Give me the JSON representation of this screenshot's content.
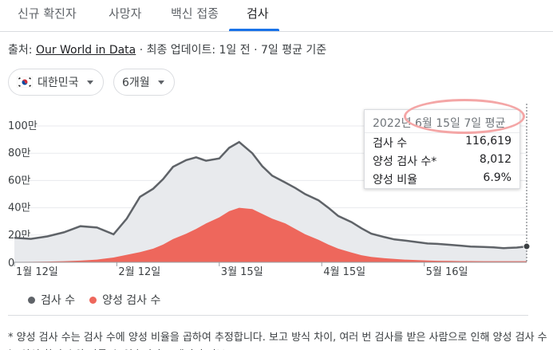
{
  "tabs": [
    {
      "label": "신규 확진자",
      "active": false
    },
    {
      "label": "사망자",
      "active": false
    },
    {
      "label": "백신 접종",
      "active": false
    },
    {
      "label": "검사",
      "active": true
    }
  ],
  "source": {
    "prefix": "출처: ",
    "link": "Our World in Data",
    "suffix": " · 최종 업데이트: 1일 전 · 7일 평균 기준"
  },
  "filters": {
    "country": {
      "label": "대한민국",
      "flag": "korea-flag-icon"
    },
    "period": {
      "label": "6개월"
    }
  },
  "tooltip": {
    "title": "2022년 6월 15일 7일 평균",
    "rows": [
      {
        "label": "검사 수",
        "value": "116,619"
      },
      {
        "label": "양성 검사 수*",
        "value": "8,012"
      },
      {
        "label": "양성 비율",
        "value": "6.9%"
      }
    ]
  },
  "legend": [
    {
      "label": "검사 수",
      "color": "#5f6368"
    },
    {
      "label": "양성 검사 수",
      "color": "#ee675c"
    }
  ],
  "footnote": "* 양성 검사 수는 검사 수에 양성 비율을 곱하여 추정합니다. 보고 방식 차이, 여러 번 검사를 받은 사람으로 인해 양성 검사 수는 양성 확진 수와 다를 수 있습니다. · 데이터 정보",
  "chart_data": {
    "type": "area",
    "x_tick_labels": [
      "1월 12일",
      "2월 12일",
      "3월 15일",
      "4월 15일",
      "5월 16일"
    ],
    "y_tick_labels": [
      "0",
      "20만",
      "40만",
      "60만",
      "80만",
      "100만"
    ],
    "ylim": [
      0,
      1000000
    ],
    "x": [
      0,
      5,
      10,
      15,
      20,
      25,
      30,
      34,
      38,
      42,
      45,
      48,
      52,
      55,
      58,
      62,
      65,
      68,
      72,
      75,
      78,
      82,
      85,
      88,
      92,
      95,
      98,
      102,
      105,
      108,
      112,
      115,
      118,
      122,
      125,
      128,
      132,
      135,
      138,
      142,
      145,
      148,
      152,
      155
    ],
    "series": [
      {
        "name": "검사 수",
        "color": "#5f6368",
        "values": [
          180000,
          172000,
          190000,
          220000,
          265000,
          255000,
          205000,
          320000,
          480000,
          540000,
          610000,
          700000,
          750000,
          770000,
          745000,
          762000,
          840000,
          882000,
          800000,
          705000,
          635000,
          585000,
          545000,
          500000,
          455000,
          400000,
          340000,
          295000,
          250000,
          210000,
          185000,
          168000,
          160000,
          148000,
          138000,
          135000,
          128000,
          122000,
          116000,
          112000,
          110000,
          104000,
          108000,
          116619
        ]
      },
      {
        "name": "양성 검사 수",
        "color": "#ee675c",
        "values": [
          3000,
          3500,
          5000,
          8000,
          12000,
          20000,
          35000,
          55000,
          75000,
          100000,
          130000,
          170000,
          210000,
          245000,
          285000,
          330000,
          375000,
          400000,
          390000,
          355000,
          320000,
          285000,
          245000,
          205000,
          165000,
          130000,
          100000,
          72000,
          52000,
          40000,
          30000,
          25000,
          20000,
          16000,
          13000,
          11000,
          10000,
          9000,
          8500,
          8200,
          8000,
          7900,
          7950,
          8012
        ]
      }
    ]
  }
}
